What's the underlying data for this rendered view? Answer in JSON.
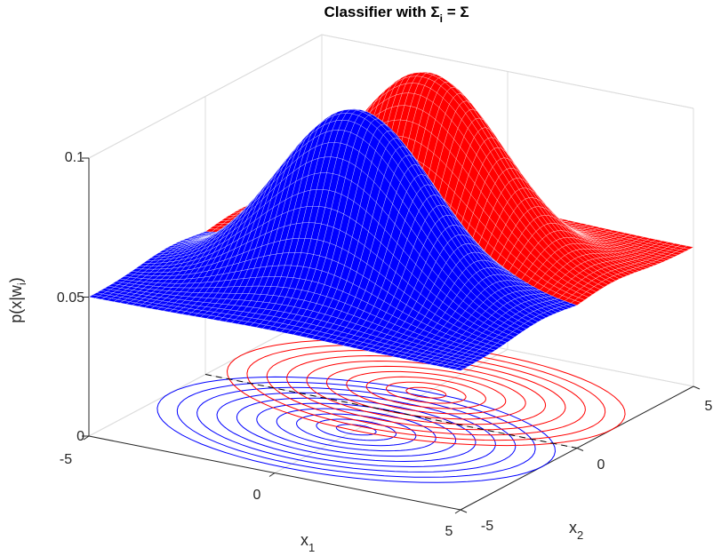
{
  "chart_data": {
    "type": "surface3d",
    "title": {
      "prefix": "Classifier with ",
      "sigma": "Σ",
      "sub": "i",
      "middle": " = ",
      "suffix": "Σ"
    },
    "xlabel": {
      "base": "x",
      "sub": "1"
    },
    "ylabel": {
      "base": "x",
      "sub": "2"
    },
    "zlabel": {
      "prefix": "p(x|w",
      "sub": "i",
      "suffix": ")"
    },
    "xlim": [
      -5,
      5
    ],
    "ylim": [
      -5,
      5
    ],
    "zlim": [
      0,
      0.1
    ],
    "x_ticks": [
      "-5",
      "0",
      "5"
    ],
    "y_ticks": [
      "-5",
      "0",
      "5"
    ],
    "z_ticks": [
      "0",
      "0.05",
      "0.1"
    ],
    "grid": true,
    "decision_boundary": {
      "style": "dashed",
      "color": "#000000"
    },
    "series": [
      {
        "color": "#0000ff",
        "mean": [
          0,
          -1.5
        ],
        "covariance": [
          [
            4,
            0
          ],
          [
            0,
            1.5
          ]
        ],
        "peak": 0.065
      },
      {
        "color": "#ff0000",
        "mean": [
          0,
          1.5
        ],
        "covariance": [
          [
            4,
            0
          ],
          [
            0,
            1.5
          ]
        ],
        "peak": 0.065
      }
    ]
  }
}
